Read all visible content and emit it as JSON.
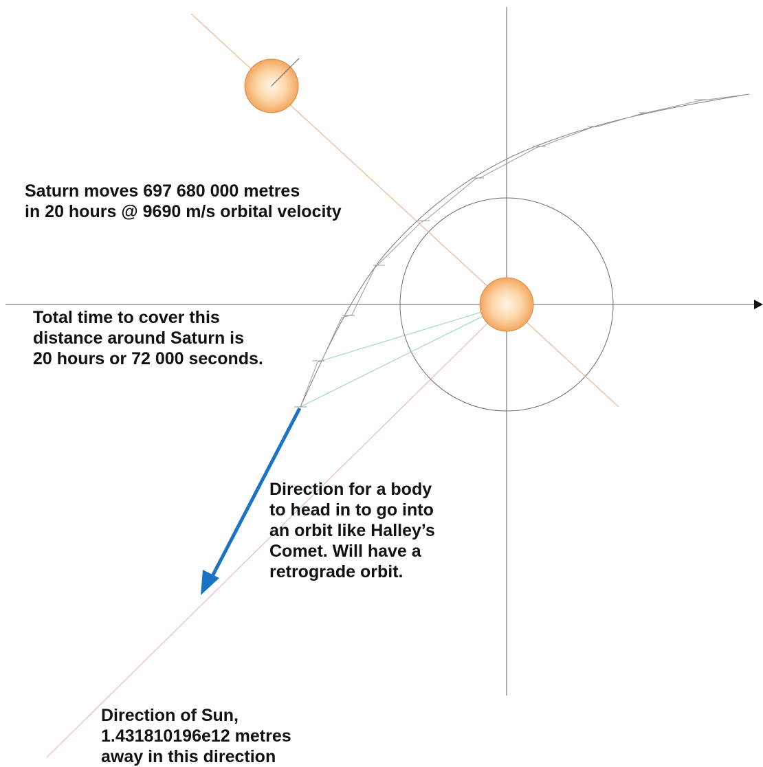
{
  "colors": {
    "axis": "#5f5f5f",
    "orbit_circle": "#6b6b6b",
    "path": "#6e6e6e",
    "sun_line": "#f2a7b7",
    "saturn_line": "#f0a878",
    "green_lines": "#8fd9b4",
    "arrow": "#1a73c4",
    "body_fill": "#f6b978",
    "body_edge": "#d38a4a",
    "text": "#111111"
  },
  "labels": {
    "saturn_moves": [
      "Saturn moves 697 680 000 metres",
      "in 20 hours @ 9690 m/s orbital velocity"
    ],
    "total_time": [
      "Total time to cover this",
      "distance around Saturn is",
      "20 hours or 72 000 seconds."
    ],
    "direction_body": [
      "Direction for a body",
      "to head in to go into",
      "an orbit like Halley’s",
      "Comet. Will have a",
      "retrograde orbit."
    ],
    "direction_sun": [
      "Direction of Sun,",
      "1.431810196e12 metres",
      "away in this direction"
    ]
  }
}
